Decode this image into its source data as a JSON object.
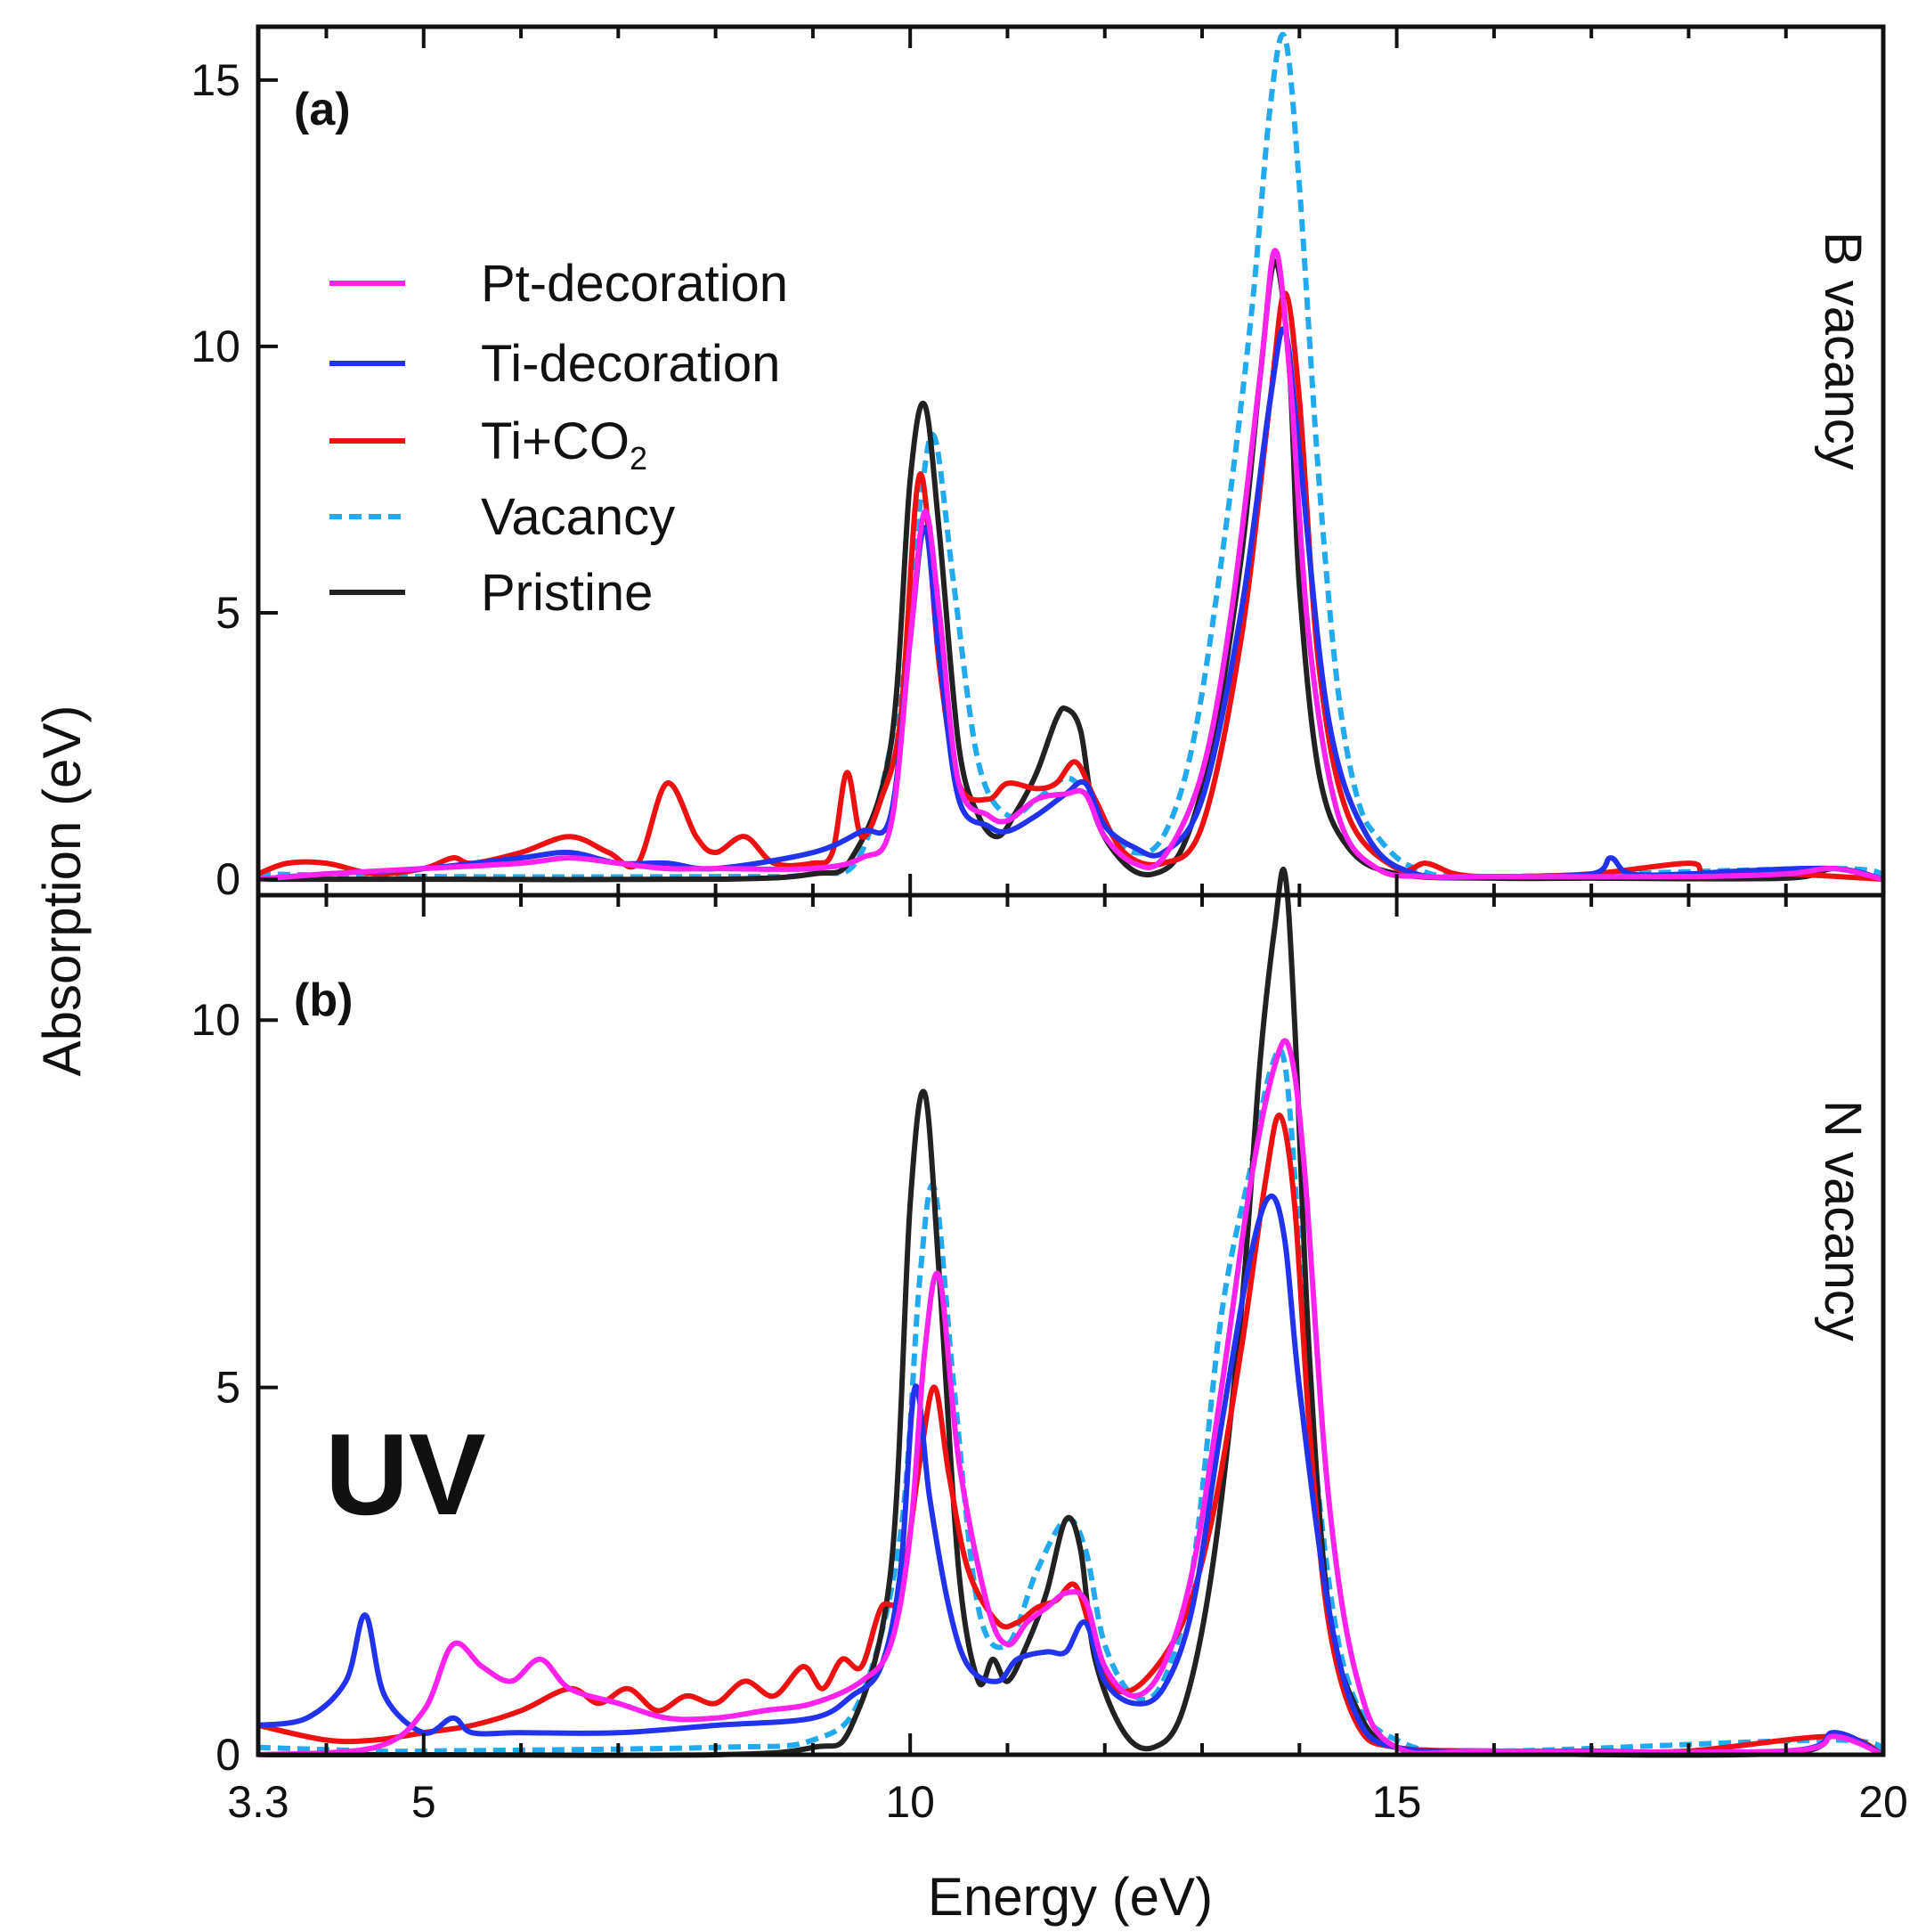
{
  "chart_data": [
    {
      "panel": "(a)",
      "side_label": "B vacancy",
      "type": "line",
      "xlabel": "Energy (eV)",
      "ylabel": "Absorption (eV)",
      "xlim": [
        3.3,
        20
      ],
      "ylim": [
        -0.3,
        16
      ],
      "yticks": [
        0,
        5,
        10,
        15
      ],
      "series": [
        {
          "name": "Pristine",
          "key": "pristine",
          "x": [
            3.3,
            5,
            8,
            9,
            9.4,
            9.8,
            10.0,
            10.15,
            10.3,
            10.5,
            10.7,
            10.9,
            11.1,
            11.3,
            11.5,
            11.6,
            11.75,
            11.9,
            12.2,
            12.5,
            12.8,
            13.1,
            13.4,
            13.6,
            13.75,
            13.9,
            14.0,
            14.2,
            14.5,
            15,
            16,
            17,
            19,
            19.5,
            20
          ],
          "y": [
            0,
            0,
            0,
            0.1,
            0.4,
            2.5,
            7.5,
            8.9,
            6.5,
            2.5,
            1.2,
            0.8,
            1.3,
            2.0,
            3.0,
            3.2,
            2.8,
            1.2,
            0.3,
            0.1,
            0.6,
            2.5,
            6.0,
            9.5,
            11.6,
            9.5,
            5.5,
            2.0,
            0.6,
            0.1,
            0.02,
            0.02,
            0.02,
            0.2,
            0
          ]
        },
        {
          "name": "Vacancy",
          "key": "vacancy",
          "x": [
            3.3,
            5,
            8,
            9,
            9.5,
            9.9,
            10.1,
            10.25,
            10.45,
            10.7,
            11.0,
            11.3,
            11.6,
            11.8,
            12.0,
            12.3,
            12.6,
            12.9,
            13.2,
            13.5,
            13.7,
            13.85,
            14.0,
            14.2,
            14.4,
            14.6,
            14.8,
            15.2,
            16,
            19.5,
            20
          ],
          "y": [
            0.1,
            0.05,
            0.05,
            0.1,
            0.5,
            3.5,
            7.0,
            8.3,
            5.5,
            2.2,
            1.2,
            1.5,
            1.9,
            1.6,
            1.0,
            0.5,
            0.8,
            2.5,
            6.0,
            10.5,
            14.5,
            15.8,
            13.0,
            7.5,
            3.5,
            1.5,
            0.8,
            0.2,
            0.05,
            0.2,
            0
          ]
        },
        {
          "name": "Ti+CO₂",
          "key": "tico2",
          "x": [
            3.3,
            3.6,
            4.0,
            4.5,
            5.0,
            5.3,
            5.5,
            6.0,
            6.5,
            6.9,
            7.2,
            7.5,
            7.8,
            8.0,
            8.3,
            8.6,
            9.0,
            9.2,
            9.35,
            9.5,
            9.7,
            9.9,
            10.1,
            10.3,
            10.5,
            10.8,
            11.0,
            11.3,
            11.5,
            11.7,
            11.9,
            12.2,
            12.6,
            13.0,
            13.4,
            13.7,
            13.85,
            14.0,
            14.2,
            14.5,
            15,
            15.3,
            15.6,
            16,
            17,
            18,
            18.2,
            19,
            20
          ],
          "y": [
            0.1,
            0.3,
            0.3,
            0.1,
            0.2,
            0.4,
            0.3,
            0.5,
            0.8,
            0.5,
            0.3,
            1.8,
            0.8,
            0.5,
            0.8,
            0.3,
            0.3,
            0.5,
            2.0,
            0.8,
            1.5,
            3.0,
            7.6,
            4.0,
            1.8,
            1.5,
            1.8,
            1.7,
            1.8,
            2.2,
            1.5,
            0.5,
            0.3,
            1.0,
            4.5,
            9.0,
            11.0,
            9.0,
            4.0,
            1.2,
            0.2,
            0.3,
            0.1,
            0.05,
            0.1,
            0.3,
            0.1,
            0.1,
            0
          ]
        },
        {
          "name": "Ti-decoration",
          "key": "tidec",
          "x": [
            3.3,
            4,
            5,
            6,
            6.5,
            7,
            7.5,
            8,
            9,
            9.5,
            9.8,
            10.0,
            10.15,
            10.3,
            10.5,
            10.8,
            11.0,
            11.3,
            11.6,
            11.8,
            12.0,
            12.3,
            12.6,
            13.0,
            13.4,
            13.7,
            13.85,
            14.0,
            14.3,
            14.7,
            15.2,
            16,
            17.0,
            17.2,
            17.4,
            18,
            18.5,
            19.5,
            20
          ],
          "y": [
            0,
            0.1,
            0.2,
            0.4,
            0.5,
            0.3,
            0.3,
            0.2,
            0.5,
            0.9,
            1.2,
            4.5,
            6.6,
            4.2,
            1.5,
            1.0,
            0.9,
            1.2,
            1.6,
            1.8,
            1.0,
            0.6,
            0.5,
            1.5,
            5.0,
            9.0,
            10.3,
            8.0,
            3.0,
            0.8,
            0.1,
            0.05,
            0.1,
            0.4,
            0.1,
            0.1,
            0.15,
            0.2,
            0
          ]
        },
        {
          "name": "Pt-decoration",
          "key": "ptdec",
          "x": [
            3.3,
            4,
            5,
            6,
            6.5,
            7,
            7.5,
            8,
            9,
            9.5,
            9.8,
            10.0,
            10.15,
            10.3,
            10.5,
            10.8,
            11.0,
            11.3,
            11.6,
            11.8,
            12.0,
            12.3,
            12.6,
            13.0,
            13.3,
            13.6,
            13.75,
            13.9,
            14.1,
            14.4,
            14.8,
            15.3,
            16,
            18,
            19,
            19.5,
            20
          ],
          "y": [
            0,
            0.1,
            0.2,
            0.3,
            0.4,
            0.3,
            0.2,
            0.2,
            0.2,
            0.4,
            1.0,
            4.5,
            6.9,
            5.0,
            1.8,
            1.2,
            1.1,
            1.5,
            1.6,
            1.6,
            0.8,
            0.3,
            0.4,
            2.0,
            5.0,
            9.5,
            11.8,
            9.5,
            4.5,
            1.2,
            0.2,
            0.05,
            0.05,
            0.05,
            0.1,
            0.2,
            0
          ]
        }
      ]
    },
    {
      "panel": "(b)",
      "side_label": "N vacancy",
      "type": "line",
      "xlabel": "Energy (eV)",
      "ylabel": "Absorption (eV)",
      "xlim": [
        3.3,
        20
      ],
      "ylim": [
        0,
        11.7
      ],
      "yticks": [
        0,
        5,
        10
      ],
      "xticks": [
        3.3,
        5,
        10,
        15,
        20
      ],
      "series": [
        {
          "name": "Pristine",
          "key": "pristine",
          "x": [
            3.3,
            5,
            8,
            9,
            9.4,
            9.8,
            10.0,
            10.15,
            10.3,
            10.5,
            10.7,
            10.85,
            11.0,
            11.2,
            11.4,
            11.6,
            11.75,
            11.9,
            12.2,
            12.5,
            12.8,
            13.1,
            13.4,
            13.6,
            13.75,
            13.85,
            13.95,
            14.1,
            14.3,
            14.6,
            15,
            16,
            19,
            19.5,
            20
          ],
          "y": [
            0,
            0,
            0,
            0.1,
            0.4,
            2.5,
            7.5,
            9.0,
            6.5,
            2.5,
            1.0,
            1.3,
            1.0,
            1.5,
            2.2,
            3.2,
            2.8,
            1.3,
            0.3,
            0.1,
            0.6,
            2.5,
            6.0,
            9.5,
            11.3,
            12.0,
            10.0,
            5.5,
            2.0,
            0.6,
            0.1,
            0.02,
            0.02,
            0.3,
            0
          ]
        },
        {
          "name": "Vacancy",
          "key": "vacancy",
          "x": [
            3.3,
            4.5,
            5,
            8,
            9,
            9.5,
            9.9,
            10.1,
            10.25,
            10.45,
            10.7,
            11.0,
            11.3,
            11.6,
            11.8,
            12.0,
            12.3,
            12.6,
            12.9,
            13.2,
            13.5,
            13.7,
            13.85,
            14.0,
            14.2,
            14.5,
            15,
            16,
            19.5,
            20
          ],
          "y": [
            0.1,
            0.05,
            0.05,
            0.1,
            0.2,
            0.8,
            3.0,
            6.5,
            7.7,
            5.0,
            2.0,
            1.5,
            2.5,
            3.2,
            2.8,
            1.5,
            0.8,
            1.0,
            2.5,
            6.0,
            8.0,
            9.3,
            9.4,
            7.0,
            3.5,
            1.0,
            0.2,
            0.05,
            0.2,
            0
          ]
        },
        {
          "name": "Ti+CO₂",
          "key": "tico2",
          "x": [
            3.3,
            4,
            4.5,
            5,
            5.5,
            6.0,
            6.5,
            6.8,
            7.1,
            7.4,
            7.7,
            8.0,
            8.3,
            8.6,
            8.9,
            9.1,
            9.3,
            9.5,
            9.7,
            9.9,
            10.1,
            10.25,
            10.4,
            10.6,
            10.9,
            11.1,
            11.3,
            11.5,
            11.7,
            11.9,
            12.1,
            12.4,
            12.8,
            13.1,
            13.4,
            13.65,
            13.8,
            13.95,
            14.1,
            14.3,
            14.6,
            15,
            16,
            17,
            18,
            19.5,
            20
          ],
          "y": [
            0.4,
            0.2,
            0.2,
            0.3,
            0.4,
            0.6,
            0.9,
            0.7,
            0.9,
            0.6,
            0.8,
            0.7,
            1.0,
            0.8,
            1.2,
            0.9,
            1.3,
            1.2,
            2.0,
            2.2,
            4.0,
            5.0,
            3.8,
            2.5,
            1.8,
            1.8,
            2.0,
            2.1,
            2.3,
            1.5,
            0.9,
            1.0,
            1.8,
            3.2,
            5.5,
            7.8,
            8.7,
            7.5,
            4.5,
            1.8,
            0.4,
            0.1,
            0.05,
            0.05,
            0.05,
            0.25,
            0
          ]
        },
        {
          "name": "Ti-decoration",
          "key": "tidec",
          "x": [
            3.3,
            3.8,
            4.2,
            4.4,
            4.6,
            5.0,
            5.3,
            5.5,
            6,
            7,
            8,
            9,
            9.4,
            9.7,
            9.9,
            10.05,
            10.2,
            10.4,
            10.6,
            10.9,
            11.1,
            11.4,
            11.6,
            11.8,
            12.0,
            12.3,
            12.6,
            12.9,
            13.2,
            13.5,
            13.7,
            13.85,
            14.0,
            14.3,
            14.6,
            15,
            16,
            19,
            19.5,
            20
          ],
          "y": [
            0.4,
            0.5,
            1.0,
            1.9,
            0.8,
            0.3,
            0.5,
            0.3,
            0.3,
            0.3,
            0.4,
            0.5,
            0.8,
            1.2,
            2.5,
            5.0,
            3.5,
            2.0,
            1.2,
            1.0,
            1.3,
            1.4,
            1.4,
            1.8,
            1.0,
            0.7,
            0.9,
            2.0,
            4.5,
            6.8,
            7.6,
            7.0,
            5.0,
            2.0,
            0.5,
            0.1,
            0.05,
            0.05,
            0.3,
            0
          ]
        },
        {
          "name": "Pt-decoration",
          "key": "ptdec",
          "x": [
            3.3,
            4.5,
            5,
            5.3,
            5.6,
            5.9,
            6.2,
            6.5,
            7,
            7.5,
            8,
            8.5,
            9,
            9.5,
            9.8,
            10.0,
            10.15,
            10.3,
            10.5,
            10.8,
            11.0,
            11.2,
            11.4,
            11.6,
            11.8,
            12.0,
            12.3,
            12.6,
            12.9,
            13.2,
            13.5,
            13.75,
            13.9,
            14.05,
            14.3,
            14.6,
            15,
            16,
            19,
            19.5,
            20
          ],
          "y": [
            0,
            0.1,
            0.6,
            1.5,
            1.2,
            1.0,
            1.3,
            0.9,
            0.7,
            0.5,
            0.5,
            0.6,
            0.7,
            1.0,
            1.5,
            3.0,
            5.5,
            6.5,
            4.0,
            2.0,
            1.5,
            1.8,
            2.0,
            2.2,
            2.1,
            1.2,
            0.8,
            1.2,
            2.5,
            5.0,
            7.8,
            9.4,
            9.6,
            8.0,
            3.5,
            1.0,
            0.1,
            0.05,
            0.05,
            0.25,
            0
          ]
        }
      ]
    }
  ],
  "legend": [
    {
      "key": "ptdec",
      "label": "Pt-decoration"
    },
    {
      "key": "tidec",
      "label": "Ti-decoration"
    },
    {
      "key": "tico2",
      "label": "Ti+CO",
      "sub": "2"
    },
    {
      "key": "vacancy",
      "label": "Vacancy"
    },
    {
      "key": "pristine",
      "label": "Pristine"
    }
  ],
  "series_styles": {
    "ptdec": {
      "color": "#ff22ee",
      "dash": false
    },
    "tidec": {
      "color": "#2233ee",
      "dash": false
    },
    "tico2": {
      "color": "#ee1111",
      "dash": false
    },
    "vacancy": {
      "color": "#22aaee",
      "dash": true
    },
    "pristine": {
      "color": "#222222",
      "dash": false
    }
  },
  "annotation": "UV"
}
